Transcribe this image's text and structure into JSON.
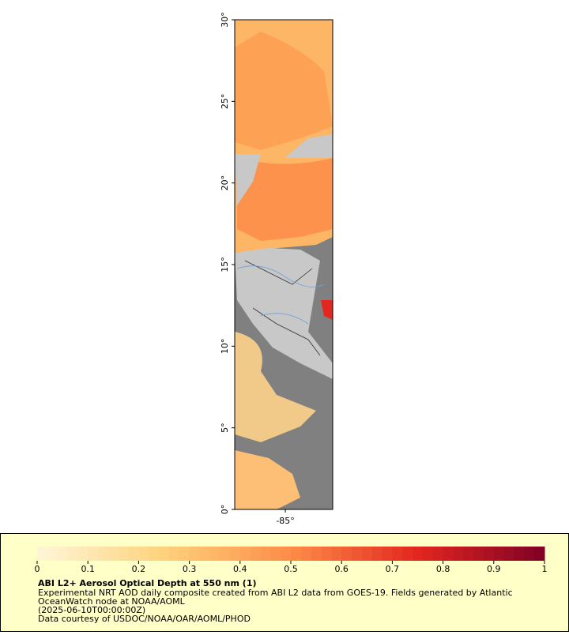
{
  "map": {
    "lat_ticks": [
      {
        "value": 0,
        "label": "0°"
      },
      {
        "value": 5,
        "label": "5°"
      },
      {
        "value": 10,
        "label": "10°"
      },
      {
        "value": 15,
        "label": "15°"
      },
      {
        "value": 20,
        "label": "20°"
      },
      {
        "value": 25,
        "label": "25°"
      },
      {
        "value": 30,
        "label": "30°"
      }
    ],
    "lat_lim": [
      0,
      30
    ],
    "lon_ticks": [
      {
        "value": -85,
        "label": "-85°"
      }
    ],
    "lon_lim": [
      -88.1,
      -82.1
    ]
  },
  "colorbar": {
    "ticks": [
      0,
      0.1,
      0.2,
      0.3,
      0.4,
      0.5,
      0.6,
      0.7,
      0.8,
      0.9,
      1
    ],
    "lim": [
      0,
      1
    ],
    "colormap": [
      "#fff6d8",
      "#fed27c",
      "#fd8c48",
      "#e3261f",
      "#7f0026"
    ]
  },
  "caption": {
    "title": "ABI L2+ Aerosol Optical Depth at 550 nm (1)",
    "lines": [
      "Experimental NRT AOD daily composite created from ABI L2 data from GOES-19. Fields generated by Atlantic",
      "OceanWatch node at NOAA/AOML",
      "(2025-06-10T00:00:00Z)",
      "Data courtesy of USDOC/NOAA/OAR/AOML/PHOD"
    ]
  }
}
